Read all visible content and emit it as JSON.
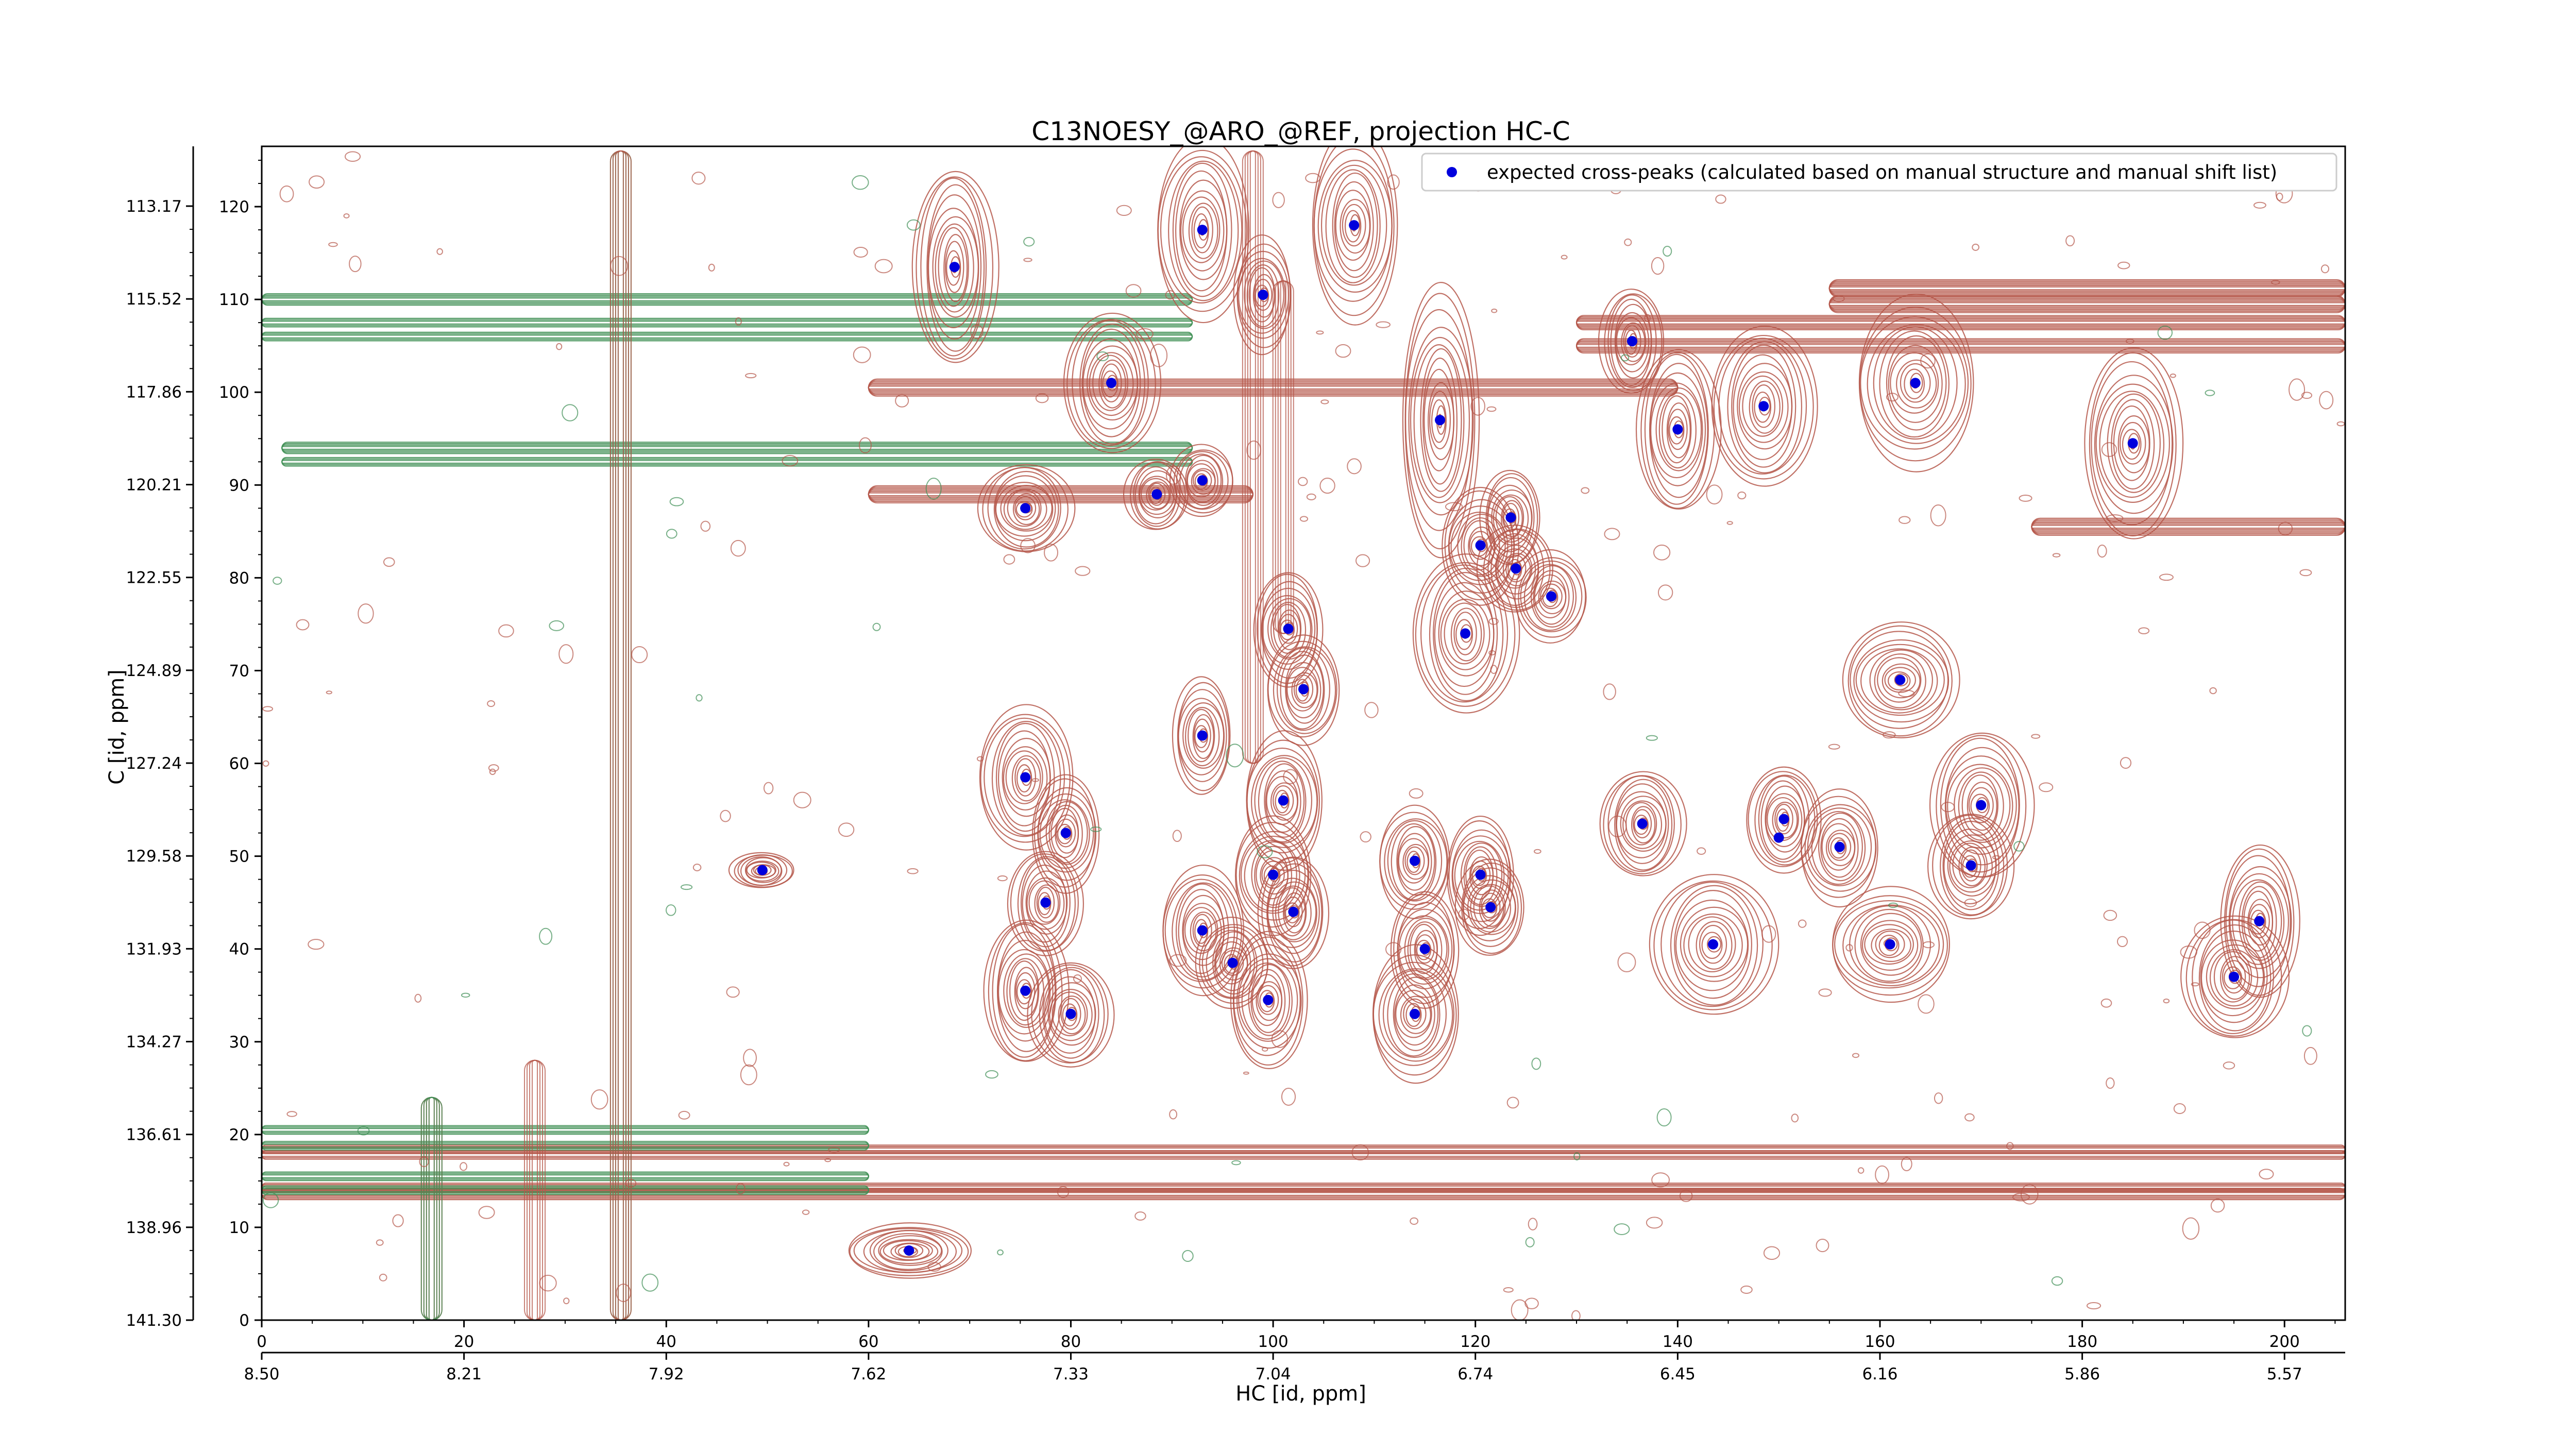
{
  "chart_data": {
    "type": "scatter",
    "title": "C13NOESY_@ARO_@REF, projection HC-C",
    "xlabel": "HC [id, ppm]",
    "ylabel": "C [id, ppm]",
    "xlim": [
      0,
      206
    ],
    "ylim": [
      0,
      126.5
    ],
    "x_ticks": [
      "0",
      "20",
      "40",
      "60",
      "80",
      "100",
      "120",
      "140",
      "160",
      "180",
      "200"
    ],
    "y_ticks": [
      "0",
      "10",
      "20",
      "30",
      "40",
      "50",
      "60",
      "70",
      "80",
      "90",
      "100",
      "110",
      "120"
    ],
    "secondary_x_ticks": [
      "8.50",
      "8.21",
      "7.92",
      "7.62",
      "7.33",
      "7.04",
      "6.74",
      "6.45",
      "6.16",
      "5.86",
      "5.57"
    ],
    "secondary_y_ticks": [
      "113.17",
      "115.52",
      "117.86",
      "120.21",
      "122.55",
      "124.89",
      "127.24",
      "129.58",
      "131.93",
      "134.27",
      "136.61",
      "138.96",
      "141.30"
    ],
    "legend": {
      "label": "expected cross-peaks (calculated based on manual structure and manual shift list)",
      "placement": "top-right"
    },
    "colors": {
      "peaks": "#0000dd",
      "positive_contour": "#b5574a",
      "negative_contour": "#3f8f55"
    },
    "series": [
      {
        "name": "expected cross-peaks (calculated based on manual structure and manual shift list)",
        "points": [
          [
            68.5,
            113.5
          ],
          [
            93,
            117.5
          ],
          [
            108,
            118
          ],
          [
            99,
            110.5
          ],
          [
            84,
            101
          ],
          [
            135.5,
            105.5
          ],
          [
            116.5,
            97
          ],
          [
            140,
            96
          ],
          [
            148.5,
            98.5
          ],
          [
            163.5,
            101
          ],
          [
            185,
            94.5
          ],
          [
            75.5,
            87.5
          ],
          [
            88.5,
            89
          ],
          [
            93,
            90.5
          ],
          [
            120.5,
            83.5
          ],
          [
            123.5,
            86.5
          ],
          [
            124,
            81
          ],
          [
            127.5,
            78
          ],
          [
            101.5,
            74.5
          ],
          [
            119,
            74
          ],
          [
            103,
            68
          ],
          [
            162,
            69
          ],
          [
            93,
            63
          ],
          [
            75.5,
            58.5
          ],
          [
            101,
            56
          ],
          [
            79.5,
            52.5
          ],
          [
            136.5,
            53.5
          ],
          [
            150.5,
            54
          ],
          [
            150,
            52
          ],
          [
            156,
            51
          ],
          [
            170,
            55.5
          ],
          [
            169,
            49
          ],
          [
            49.5,
            48.5
          ],
          [
            100,
            48
          ],
          [
            102,
            44
          ],
          [
            77.5,
            45
          ],
          [
            114,
            49.5
          ],
          [
            120.5,
            48
          ],
          [
            121.5,
            44.5
          ],
          [
            93,
            42
          ],
          [
            96,
            38.5
          ],
          [
            115,
            40
          ],
          [
            143.5,
            40.5
          ],
          [
            161,
            40.5
          ],
          [
            99.5,
            34.5
          ],
          [
            75.5,
            35.5
          ],
          [
            80,
            33
          ],
          [
            114,
            33
          ],
          [
            197.5,
            43
          ],
          [
            195,
            37
          ],
          [
            64,
            7.5
          ]
        ]
      }
    ],
    "contours": {
      "positive_peaks": [
        [
          68.5,
          113.5,
          4,
          11,
          1
        ],
        [
          93,
          117.5,
          4.5,
          10,
          1
        ],
        [
          108,
          118,
          4.5,
          10,
          1
        ],
        [
          99,
          110.5,
          3,
          6,
          0.8
        ],
        [
          84,
          101,
          4.5,
          8,
          1
        ],
        [
          135.5,
          105.5,
          3,
          6,
          0.8
        ],
        [
          116.5,
          97,
          4,
          14,
          1
        ],
        [
          140,
          96,
          4,
          9,
          1
        ],
        [
          148.5,
          98.5,
          5,
          9,
          1
        ],
        [
          163.5,
          101,
          6,
          9,
          1
        ],
        [
          185,
          94.5,
          5,
          10,
          1
        ],
        [
          75.5,
          87.5,
          4.5,
          5,
          1
        ],
        [
          88.5,
          89,
          3,
          4,
          0.8
        ],
        [
          93,
          90.5,
          3,
          4,
          0.8
        ],
        [
          120.5,
          83.5,
          4,
          6,
          0.9
        ],
        [
          123.5,
          86.5,
          3,
          5,
          0.8
        ],
        [
          124,
          81,
          3.5,
          5,
          0.8
        ],
        [
          127.5,
          78,
          3.5,
          5,
          0.8
        ],
        [
          101.5,
          74.5,
          3.5,
          6,
          0.9
        ],
        [
          119,
          74,
          5,
          9,
          1
        ],
        [
          103,
          68,
          3.5,
          6,
          0.9
        ],
        [
          162,
          69,
          6,
          6,
          1
        ],
        [
          93,
          63,
          3,
          6,
          0.8
        ],
        [
          75.5,
          58.5,
          4.5,
          8,
          1
        ],
        [
          101,
          56,
          4,
          7,
          1
        ],
        [
          79.5,
          52.5,
          3.5,
          6,
          0.9
        ],
        [
          136.5,
          53.5,
          4,
          6,
          1
        ],
        [
          150.5,
          54,
          3.5,
          6,
          0.9
        ],
        [
          156,
          51,
          4,
          6,
          0.9
        ],
        [
          170,
          55.5,
          5,
          8,
          1
        ],
        [
          169,
          49,
          4,
          6,
          0.9
        ],
        [
          49.5,
          48.5,
          3,
          2,
          0.7
        ],
        [
          100,
          48,
          4,
          6,
          0.9
        ],
        [
          102,
          44,
          3.5,
          6,
          0.9
        ],
        [
          77.5,
          45,
          3.5,
          6,
          0.9
        ],
        [
          114,
          49.5,
          3.5,
          6,
          0.9
        ],
        [
          120.5,
          48,
          3.5,
          6,
          0.9
        ],
        [
          121.5,
          44.5,
          3.5,
          5,
          0.8
        ],
        [
          93,
          42,
          4,
          7,
          1
        ],
        [
          96,
          38.5,
          3.5,
          5,
          0.8
        ],
        [
          115,
          40,
          3.5,
          6,
          0.9
        ],
        [
          143.5,
          40.5,
          6,
          8,
          1
        ],
        [
          161,
          40.5,
          6,
          6,
          1
        ],
        [
          99.5,
          34.5,
          4,
          7,
          1
        ],
        [
          75.5,
          35.5,
          4,
          8,
          1
        ],
        [
          80,
          33,
          4,
          6,
          0.9
        ],
        [
          114,
          33,
          4.5,
          7,
          1
        ],
        [
          197.5,
          43,
          4,
          8,
          1
        ],
        [
          195,
          37,
          5,
          7,
          1
        ],
        [
          64,
          7.5,
          6,
          3,
          1
        ]
      ],
      "positive_bands": [
        [
          0,
          206,
          18.4,
          0.55
        ],
        [
          0,
          206,
          17.8,
          0.45
        ],
        [
          0,
          206,
          14.3,
          0.55
        ],
        [
          0,
          206,
          13.6,
          0.7
        ],
        [
          155,
          206,
          111.2,
          1
        ],
        [
          155,
          206,
          109.5,
          1
        ],
        [
          130,
          206,
          107.5,
          0.9
        ],
        [
          130,
          206,
          105,
          0.8
        ],
        [
          60,
          140,
          100.5,
          1
        ],
        [
          175,
          206,
          85.5,
          1
        ],
        [
          60,
          98,
          89,
          1
        ]
      ],
      "negative_bands": [
        [
          0,
          92,
          110,
          0.7
        ],
        [
          0,
          92,
          107.5,
          0.55
        ],
        [
          0,
          92,
          106,
          0.45
        ],
        [
          2,
          92,
          94,
          0.7
        ],
        [
          2,
          92,
          92.5,
          0.55
        ],
        [
          0,
          60,
          20.5,
          0.5
        ],
        [
          0,
          60,
          18.8,
          0.45
        ],
        [
          0,
          60,
          15.5,
          0.5
        ],
        [
          0,
          60,
          14,
          0.55
        ]
      ],
      "vertical_strips": [
        [
          16.8,
          0,
          24,
          "positive"
        ],
        [
          16.8,
          0,
          24,
          "negative"
        ],
        [
          27,
          0,
          28,
          "positive"
        ],
        [
          35.5,
          0,
          126,
          "negative"
        ],
        [
          35.5,
          0,
          126,
          "positive"
        ],
        [
          98,
          60,
          126,
          "positive"
        ],
        [
          101,
          74,
          112,
          "positive"
        ]
      ]
    }
  }
}
